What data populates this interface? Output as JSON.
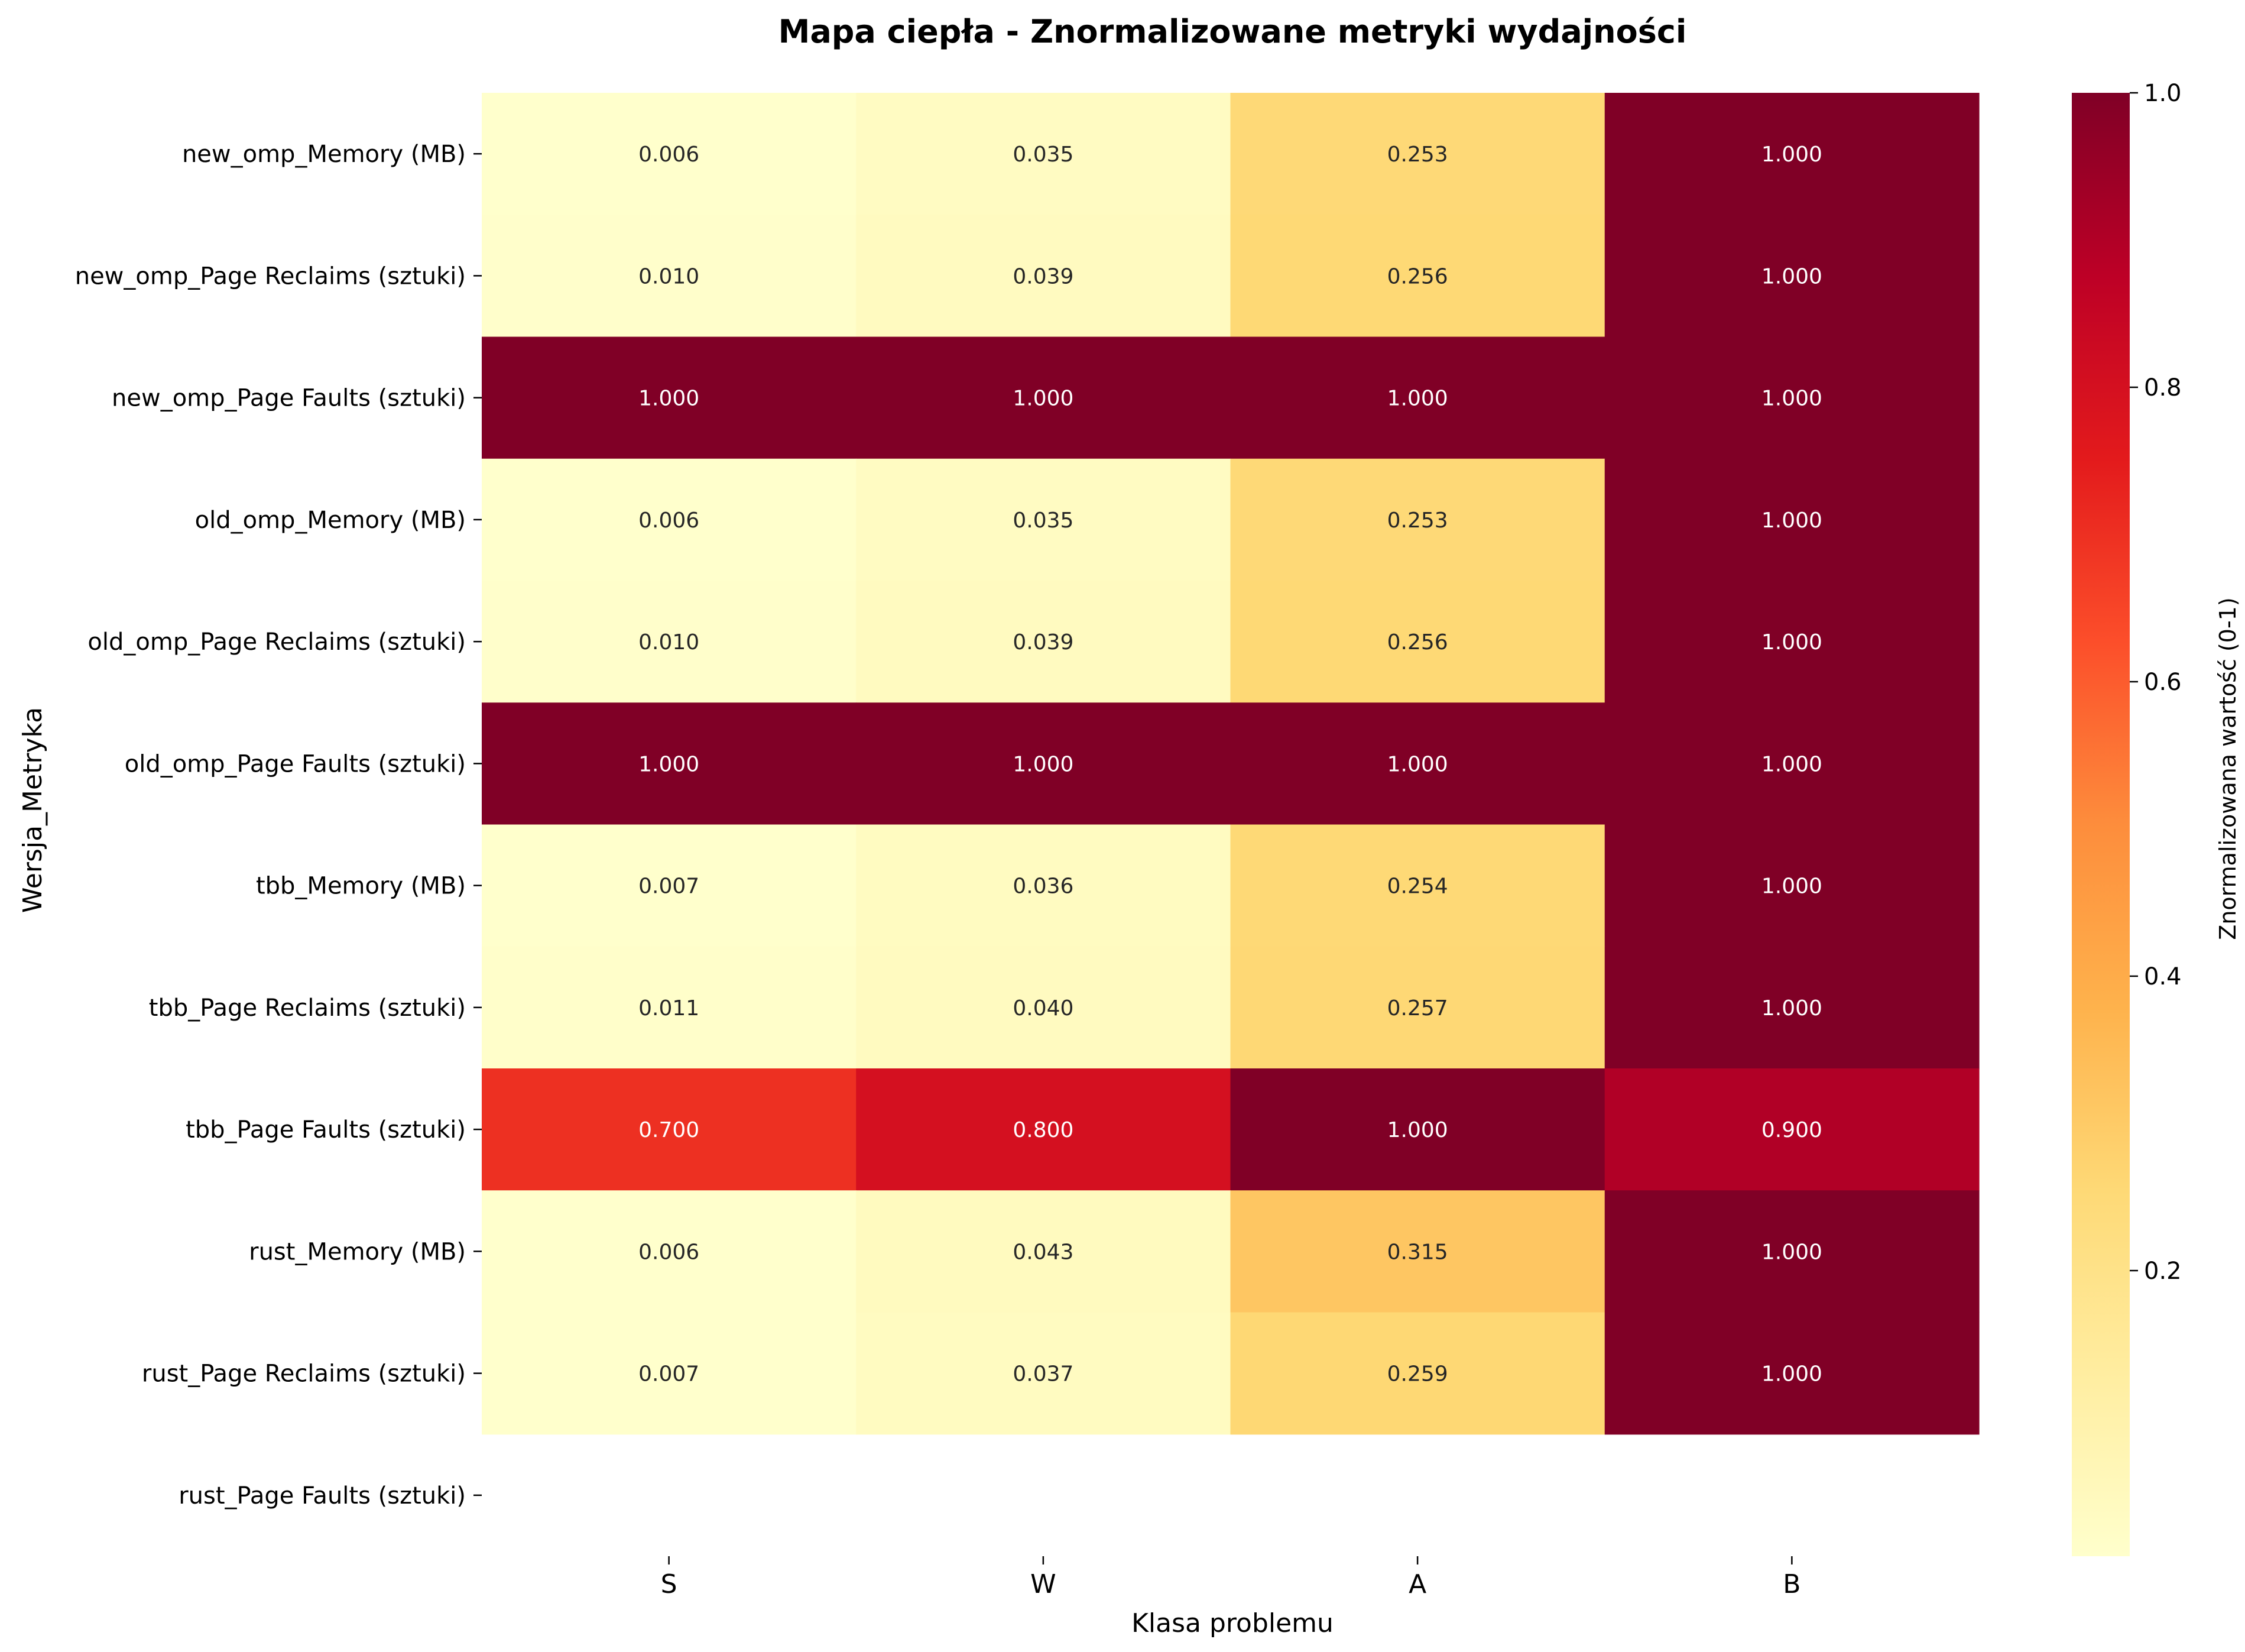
{
  "chart_data": {
    "type": "heatmap",
    "title": "Mapa ciepła - Znormalizowane metryki wydajności",
    "xlabel": "Klasa problemu",
    "ylabel": "Wersja_Metryka",
    "colorbar_label": "Znormalizowana wartość (0-1)",
    "colormap": "YlOrRd",
    "colorbar_ticks": [
      "0.2",
      "0.4",
      "0.6",
      "0.8",
      "1.0"
    ],
    "colorbar_tick_values": [
      0.2,
      0.4,
      0.6,
      0.8,
      1.0
    ],
    "colorbar_range": [
      0.006,
      1.0
    ],
    "x_categories": [
      "S",
      "W",
      "A",
      "B"
    ],
    "y_categories": [
      "new_omp_Memory (MB)",
      "new_omp_Page Reclaims (sztuki)",
      "new_omp_Page Faults (sztuki)",
      "old_omp_Memory (MB)",
      "old_omp_Page Reclaims (sztuki)",
      "old_omp_Page Faults (sztuki)",
      "tbb_Memory (MB)",
      "tbb_Page Reclaims (sztuki)",
      "tbb_Page Faults (sztuki)",
      "rust_Memory (MB)",
      "rust_Page Reclaims (sztuki)",
      "rust_Page Faults (sztuki)"
    ],
    "values": [
      [
        0.006,
        0.035,
        0.253,
        1.0
      ],
      [
        0.01,
        0.039,
        0.256,
        1.0
      ],
      [
        1.0,
        1.0,
        1.0,
        1.0
      ],
      [
        0.006,
        0.035,
        0.253,
        1.0
      ],
      [
        0.01,
        0.039,
        0.256,
        1.0
      ],
      [
        1.0,
        1.0,
        1.0,
        1.0
      ],
      [
        0.007,
        0.036,
        0.254,
        1.0
      ],
      [
        0.011,
        0.04,
        0.257,
        1.0
      ],
      [
        0.7,
        0.8,
        1.0,
        0.9
      ],
      [
        0.006,
        0.043,
        0.315,
        1.0
      ],
      [
        0.007,
        0.037,
        0.259,
        1.0
      ],
      [
        null,
        null,
        null,
        null
      ]
    ],
    "annotation_format": "3 decimals",
    "grid": false
  }
}
